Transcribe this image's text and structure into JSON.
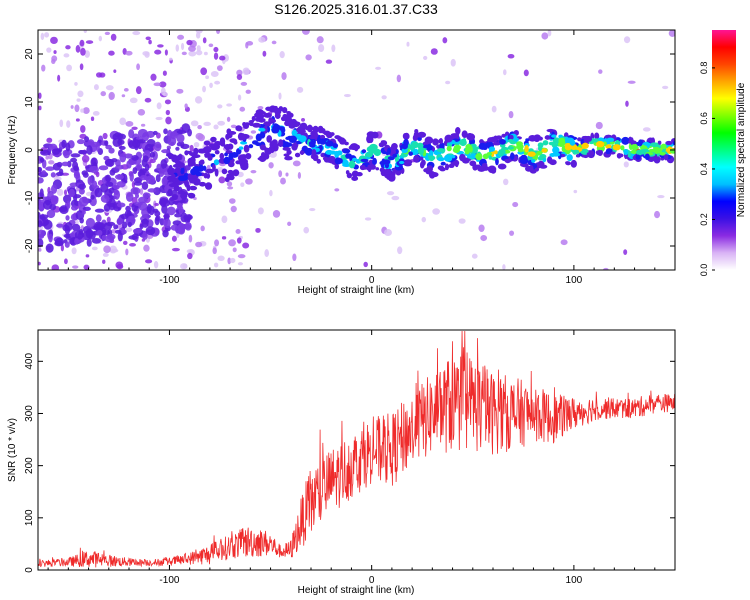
{
  "title": "S126.2025.316.01.37.C33",
  "chart_data": [
    {
      "type": "heatmap",
      "title": "S126.2025.316.01.37.C33",
      "xlabel": "Height of straight line (km)",
      "ylabel": "Frequency (Hz)",
      "xlim": [
        -165,
        150
      ],
      "ylim": [
        -25,
        25
      ],
      "x_ticks": [
        -100,
        0,
        100
      ],
      "x_tick_labels": [
        "-100",
        "0",
        "100"
      ],
      "y_ticks": [
        -20,
        -10,
        0,
        10,
        20
      ],
      "y_tick_labels": [
        "-20",
        "-10",
        "0",
        "10",
        "20"
      ],
      "colorbar": {
        "label": "Normalized spectral amplitude",
        "range": [
          0,
          0.95
        ],
        "ticks": [
          0,
          0.2,
          0.4,
          0.6,
          0.8
        ],
        "tick_labels": [
          "0.0",
          "0.2",
          "0.4",
          "0.6",
          "0.8"
        ],
        "colormap": [
          "#ffffff",
          "#d9b3f5",
          "#8a2be2",
          "#3a10e5",
          "#0000ff",
          "#00bfff",
          "#00ffff",
          "#00ff7f",
          "#00ff00",
          "#80ff00",
          "#ffff00",
          "#ffa500",
          "#ff4500",
          "#ff0000",
          "#ff1493"
        ]
      },
      "ridge": {
        "x": [
          -100,
          -90,
          -80,
          -70,
          -60,
          -55,
          -50,
          -45,
          -40,
          -35,
          -30,
          -25,
          -20,
          -15,
          -10,
          -5,
          0,
          5,
          10,
          15,
          20,
          25,
          30,
          35,
          40,
          45,
          50,
          55,
          60,
          65,
          70,
          75,
          80,
          85,
          90,
          95,
          100,
          110,
          120,
          130,
          140,
          150
        ],
        "freq": [
          -6,
          -5,
          -3,
          -1,
          2,
          3,
          4,
          4,
          3,
          2,
          1,
          1,
          0,
          -1,
          -3,
          -2,
          0,
          -1,
          -3,
          -1,
          1,
          0,
          -2,
          -1,
          0,
          1,
          0,
          -1,
          -1,
          0,
          1,
          0,
          -1,
          0,
          1,
          1,
          0,
          1,
          1,
          0,
          0,
          0
        ]
      }
    },
    {
      "type": "line",
      "xlabel": "Height of straight line (km)",
      "ylabel": "SNR (10 * v/v)",
      "xlim": [
        -165,
        150
      ],
      "ylim": [
        0,
        460
      ],
      "x_ticks": [
        -100,
        0,
        100
      ],
      "x_tick_labels": [
        "-100",
        "0",
        "100"
      ],
      "y_ticks": [
        0,
        100,
        200,
        300,
        400
      ],
      "y_tick_labels": [
        "0",
        "100",
        "200",
        "300",
        "400"
      ],
      "color": "#ef2b2b",
      "series": [
        {
          "name": "SNR",
          "x": [
            -165,
            -150,
            -140,
            -130,
            -120,
            -110,
            -100,
            -90,
            -80,
            -70,
            -60,
            -50,
            -45,
            -40,
            -35,
            -30,
            -20,
            -10,
            0,
            10,
            20,
            30,
            40,
            50,
            60,
            70,
            80,
            90,
            100,
            110,
            120,
            130,
            140,
            150
          ],
          "mean": [
            12,
            15,
            22,
            18,
            15,
            14,
            16,
            22,
            30,
            45,
            55,
            50,
            35,
            38,
            90,
            130,
            170,
            200,
            230,
            230,
            270,
            300,
            320,
            320,
            300,
            300,
            300,
            290,
            300,
            310,
            310,
            310,
            320,
            320
          ],
          "spread": [
            8,
            10,
            22,
            15,
            10,
            8,
            10,
            15,
            25,
            30,
            40,
            30,
            15,
            25,
            60,
            90,
            80,
            80,
            80,
            90,
            90,
            100,
            120,
            120,
            100,
            90,
            70,
            60,
            40,
            30,
            25,
            25,
            25,
            20
          ]
        }
      ]
    }
  ]
}
